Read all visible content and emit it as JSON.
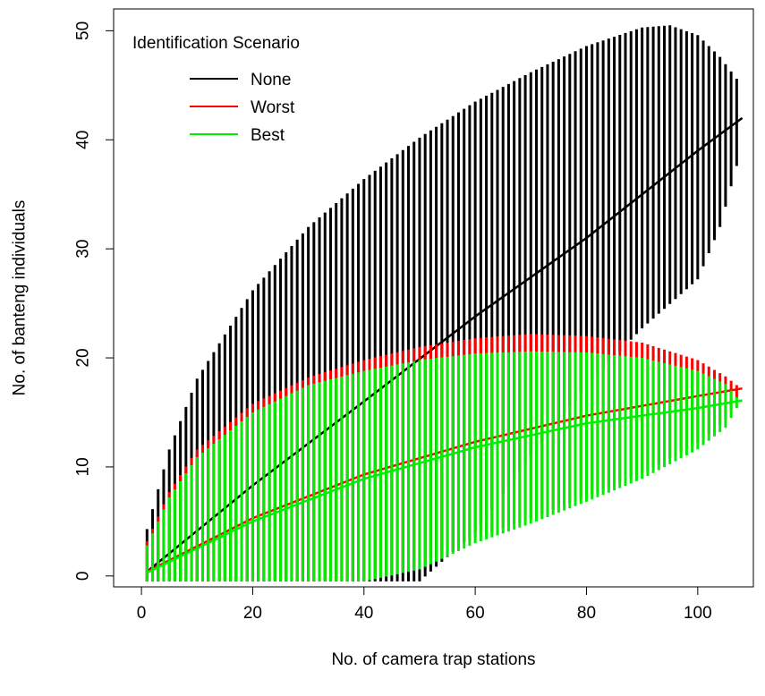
{
  "chart_data": {
    "type": "line",
    "xlabel": "No. of camera trap stations",
    "ylabel": "No. of banteng individuals",
    "xlim": [
      -5,
      110
    ],
    "ylim": [
      -1,
      52
    ],
    "x_ticks": [
      "0",
      "20",
      "40",
      "60",
      "80",
      "100"
    ],
    "y_ticks": [
      "0",
      "10",
      "20",
      "30",
      "40",
      "50"
    ],
    "x_range": [
      1,
      108
    ],
    "legend": {
      "title": "Identification Scenario",
      "placement": "top-left",
      "entries": [
        "None",
        "Worst",
        "Best"
      ]
    },
    "colors": {
      "None": "#000000",
      "Worst": "#ff0000",
      "Best": "#00ee00"
    },
    "series": [
      {
        "name": "None",
        "mean_at": {
          "x": [
            1,
            20,
            40,
            60,
            80,
            100,
            108
          ],
          "y": [
            0.4,
            8.3,
            16.0,
            23.8,
            31.0,
            39.0,
            42.0
          ]
        },
        "upper_at": {
          "x": [
            1,
            5,
            10,
            20,
            30,
            40,
            50,
            60,
            70,
            80,
            90,
            95,
            100,
            104,
            107
          ],
          "y": [
            4.3,
            11.6,
            18.1,
            26.2,
            32.0,
            36.4,
            40.2,
            43.5,
            46.2,
            48.6,
            50.3,
            50.5,
            49.6,
            47.6,
            45.6
          ]
        },
        "lower_at": {
          "x": [
            1,
            20,
            30,
            40,
            50,
            60,
            70,
            80,
            90,
            100,
            104,
            107
          ],
          "y": [
            -0.5,
            -0.5,
            -0.5,
            -0.5,
            -0.5,
            4.0,
            11.0,
            17.5,
            22.7,
            27.2,
            32.0,
            37.6
          ]
        }
      },
      {
        "name": "Worst",
        "mean_at": {
          "x": [
            1,
            20,
            40,
            60,
            80,
            100,
            108
          ],
          "y": [
            0.4,
            5.3,
            9.3,
            12.3,
            14.7,
            16.5,
            17.2
          ]
        },
        "upper_at": {
          "x": [
            1,
            5,
            10,
            20,
            30,
            40,
            50,
            60,
            70,
            80,
            90,
            100,
            105,
            107
          ],
          "y": [
            3.2,
            7.7,
            11.6,
            15.8,
            18.2,
            19.8,
            21.0,
            21.8,
            22.2,
            22.0,
            21.4,
            19.8,
            18.3,
            17.5
          ]
        },
        "lower_at": {
          "x": [
            1,
            20,
            30,
            40,
            50,
            60,
            70,
            80,
            90,
            100,
            105,
            107
          ],
          "y": [
            -0.5,
            -0.5,
            -0.5,
            -0.5,
            1.0,
            3.5,
            5.3,
            7.3,
            9.4,
            12.2,
            14.3,
            16.2
          ]
        }
      },
      {
        "name": "Best",
        "mean_at": {
          "x": [
            1,
            20,
            40,
            60,
            80,
            100,
            108
          ],
          "y": [
            0.3,
            5.0,
            8.9,
            11.8,
            14.0,
            15.4,
            16.1
          ]
        },
        "upper_at": {
          "x": [
            1,
            5,
            10,
            20,
            30,
            40,
            50,
            60,
            70,
            80,
            90,
            100,
            105,
            107
          ],
          "y": [
            2.8,
            7.2,
            10.9,
            15.0,
            17.5,
            18.8,
            19.8,
            20.4,
            20.6,
            20.5,
            20.0,
            18.8,
            17.6,
            16.4
          ]
        },
        "lower_at": {
          "x": [
            1,
            20,
            30,
            40,
            50,
            60,
            70,
            80,
            90,
            100,
            105,
            107
          ],
          "y": [
            -0.5,
            -0.5,
            -0.5,
            -0.5,
            0.6,
            3.0,
            4.8,
            6.8,
            8.9,
            11.6,
            13.6,
            15.4
          ]
        }
      }
    ]
  }
}
